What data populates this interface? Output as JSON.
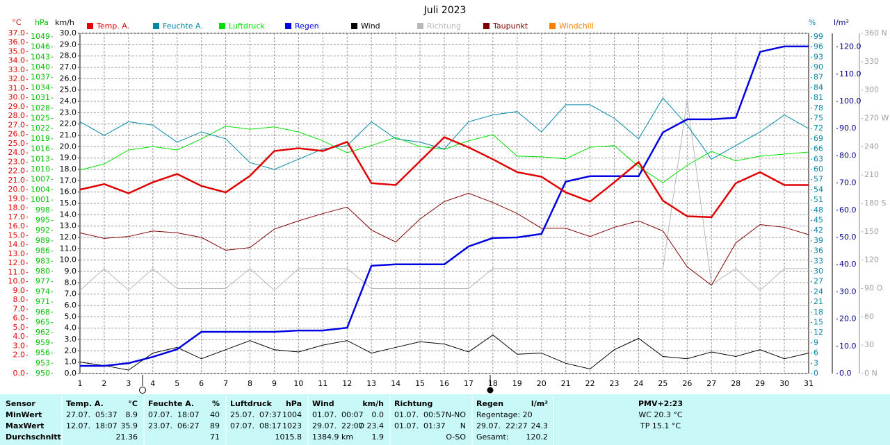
{
  "chart_data": {
    "type": "line",
    "title": "Juli 2023",
    "categories": [
      1,
      2,
      3,
      4,
      5,
      6,
      7,
      8,
      9,
      10,
      11,
      12,
      13,
      14,
      15,
      16,
      17,
      18,
      19,
      20,
      21,
      22,
      23,
      24,
      25,
      26,
      27,
      28,
      29,
      30,
      31
    ],
    "axes": {
      "temp": {
        "label": "°C",
        "color": "#e00000",
        "lim": [
          0,
          37
        ],
        "ticks": [
          {
            "value": 0,
            "label": "0.0"
          },
          {
            "value": 2,
            "label": "2.0"
          },
          {
            "value": 3,
            "label": "3.0"
          },
          {
            "value": 4,
            "label": "4.0"
          },
          {
            "value": 5,
            "label": "5.0"
          },
          {
            "value": 6,
            "label": "6.0"
          },
          {
            "value": 7,
            "label": "7.0"
          },
          {
            "value": 8,
            "label": "8.0"
          },
          {
            "value": 9,
            "label": "9.0"
          },
          {
            "value": 10,
            "label": "10.0"
          },
          {
            "value": 11,
            "label": "11.0"
          },
          {
            "value": 12,
            "label": "12.0"
          },
          {
            "value": 13,
            "label": "13.0"
          },
          {
            "value": 14,
            "label": "14.0"
          },
          {
            "value": 15,
            "label": "15.0"
          },
          {
            "value": 16,
            "label": "16.0"
          },
          {
            "value": 17,
            "label": "17.0"
          },
          {
            "value": 18,
            "label": "18.0"
          },
          {
            "value": 19,
            "label": "19.0"
          },
          {
            "value": 20,
            "label": "20.0"
          },
          {
            "value": 21,
            "label": "21.0"
          },
          {
            "value": 22,
            "label": "22.0"
          },
          {
            "value": 23,
            "label": "23.0"
          },
          {
            "value": 24,
            "label": "24.0"
          },
          {
            "value": 25,
            "label": "25.0"
          },
          {
            "value": 26,
            "label": "26.0"
          },
          {
            "value": 27,
            "label": "27.0"
          },
          {
            "value": 28,
            "label": "28.0"
          },
          {
            "value": 29,
            "label": "29.0"
          },
          {
            "value": 30,
            "label": "30.0"
          },
          {
            "value": 31,
            "label": "31.0"
          },
          {
            "value": 32,
            "label": "32.0"
          },
          {
            "value": 33,
            "label": "33.0"
          },
          {
            "value": 34,
            "label": "34.0"
          },
          {
            "value": 35,
            "label": "35.0"
          },
          {
            "value": 36,
            "label": "36.0"
          },
          {
            "value": 37,
            "label": "37.0"
          }
        ]
      },
      "hpa": {
        "label": "hPa",
        "color": "#00c000",
        "lim": [
          950,
          1050
        ],
        "ticks": [
          950,
          953,
          956,
          959,
          962,
          965,
          968,
          971,
          974,
          977,
          980,
          983,
          986,
          989,
          992,
          995,
          998,
          1001,
          1004,
          1007,
          1010,
          1013,
          1016,
          1019,
          1022,
          1025,
          1028,
          1031,
          1034,
          1037,
          1040,
          1043,
          1046,
          1049
        ]
      },
      "kmh": {
        "label": "km/h",
        "color": "#000000",
        "lim": [
          0,
          30
        ],
        "ticks": [
          {
            "value": 0,
            "label": "0.0"
          },
          {
            "value": 1,
            "label": "1.0"
          },
          {
            "value": 2,
            "label": "2.0"
          },
          {
            "value": 3,
            "label": "3.0"
          },
          {
            "value": 4,
            "label": "4.0"
          },
          {
            "value": 5,
            "label": "5.0"
          },
          {
            "value": 6,
            "label": "6.0"
          },
          {
            "value": 7,
            "label": "7.0"
          },
          {
            "value": 8,
            "label": "8.0"
          },
          {
            "value": 9,
            "label": "9.0"
          },
          {
            "value": 10,
            "label": "10.0"
          },
          {
            "value": 11,
            "label": "11.0"
          },
          {
            "value": 12,
            "label": "12.0"
          },
          {
            "value": 13,
            "label": "13.0"
          },
          {
            "value": 14,
            "label": "14.0"
          },
          {
            "value": 15,
            "label": "15.0"
          },
          {
            "value": 16,
            "label": "16.0"
          },
          {
            "value": 17,
            "label": "17.0"
          },
          {
            "value": 18,
            "label": "18.0"
          },
          {
            "value": 19,
            "label": "19.0"
          },
          {
            "value": 20,
            "label": "20.0"
          },
          {
            "value": 21,
            "label": "21.0"
          },
          {
            "value": 22,
            "label": "22.0"
          },
          {
            "value": 23,
            "label": "23.0"
          },
          {
            "value": 24,
            "label": "24.0"
          },
          {
            "value": 25,
            "label": "25.0"
          },
          {
            "value": 26,
            "label": "26.0"
          },
          {
            "value": 27,
            "label": "27.0"
          },
          {
            "value": 28,
            "label": "28.0"
          },
          {
            "value": 29,
            "label": "29.0"
          },
          {
            "value": 30,
            "label": "30.0"
          }
        ]
      },
      "pct": {
        "label": "%",
        "color": "#0088aa",
        "lim": [
          0,
          100
        ],
        "ticks": [
          0,
          3,
          6,
          9,
          12,
          15,
          18,
          21,
          24,
          27,
          30,
          33,
          36,
          39,
          42,
          45,
          48,
          51,
          54,
          57,
          60,
          63,
          66,
          69,
          72,
          75,
          78,
          81,
          84,
          87,
          90,
          93,
          96,
          99
        ]
      },
      "rain": {
        "label": "l/m²",
        "color": "#000088",
        "lim": [
          0,
          125
        ],
        "ticks": [
          {
            "value": 0,
            "label": "0.0"
          },
          {
            "value": 10,
            "label": "10.0"
          },
          {
            "value": 20,
            "label": "20.0"
          },
          {
            "value": 30,
            "label": "30.0"
          },
          {
            "value": 40,
            "label": "40.0"
          },
          {
            "value": 50,
            "label": "50.0"
          },
          {
            "value": 60,
            "label": "60.0"
          },
          {
            "value": 70,
            "label": "70.0"
          },
          {
            "value": 80,
            "label": "80.0"
          },
          {
            "value": 90,
            "label": "90.0"
          },
          {
            "value": 100,
            "label": "100.0"
          },
          {
            "value": 110,
            "label": "110.0"
          },
          {
            "value": 120,
            "label": "120.0"
          }
        ]
      },
      "dir": {
        "color": "#a0a0a0",
        "lim": [
          0,
          360
        ],
        "ticks": [
          {
            "value": 0,
            "label": "0 N"
          },
          30,
          60,
          {
            "value": 90,
            "label": "90 O"
          },
          120,
          150,
          {
            "value": 180,
            "label": "180 S"
          },
          210,
          240,
          {
            "value": 270,
            "label": "270 W"
          },
          300,
          330,
          {
            "value": 360,
            "label": "360 N"
          }
        ]
      }
    },
    "series": [
      {
        "name": "Temp. A.",
        "color": "#e00000",
        "axis": "temp",
        "width": 2.5,
        "values": [
          20.0,
          20.6,
          19.6,
          20.8,
          21.7,
          20.4,
          19.7,
          21.5,
          24.2,
          24.5,
          24.2,
          25.2,
          20.7,
          20.5,
          23.1,
          25.7,
          24.6,
          23.3,
          21.9,
          21.4,
          19.7,
          18.7,
          20.8,
          23.0,
          18.8,
          17.1,
          17.0,
          20.7,
          21.9,
          20.5,
          20.5
        ]
      },
      {
        "name": "Feuchte A.",
        "color": "#0088aa",
        "axis": "pct",
        "width": 1,
        "values": [
          74,
          70,
          74,
          73,
          68,
          71,
          69,
          62,
          60,
          63,
          66,
          67,
          74,
          69,
          68,
          66,
          74,
          76,
          77,
          71,
          79,
          79,
          75,
          69,
          81,
          73,
          63,
          67,
          71,
          76,
          72
        ]
      },
      {
        "name": "Luftdruck",
        "color": "#00e000",
        "axis": "hpa",
        "width": 1,
        "values": [
          1009.8,
          1011.6,
          1015.7,
          1016.7,
          1015.7,
          1019.0,
          1022.7,
          1021.8,
          1022.5,
          1021.0,
          1018.4,
          1014.9,
          1017.0,
          1019.4,
          1016.7,
          1015.9,
          1018.4,
          1020.2,
          1013.9,
          1013.7,
          1013.1,
          1016.5,
          1017.0,
          1010.8,
          1006.1,
          1011.2,
          1015.3,
          1012.5,
          1013.9,
          1014.5,
          1015.1
        ]
      },
      {
        "name": "Regen",
        "color": "#0000e0",
        "axis": "rain",
        "width": 2.5,
        "values": [
          2.8,
          2.8,
          3.8,
          6.1,
          8.9,
          15.3,
          15.3,
          15.3,
          15.3,
          15.8,
          15.8,
          16.8,
          39.6,
          40.1,
          40.1,
          40.1,
          46.7,
          49.8,
          50.0,
          51.3,
          70.5,
          72.5,
          72.5,
          72.5,
          88.6,
          93.4,
          93.4,
          94.0,
          118.2,
          120.2,
          120.2
        ]
      },
      {
        "name": "Wind",
        "color": "#000000",
        "axis": "kmh",
        "width": 1,
        "values": [
          1.0,
          0.7,
          0.3,
          1.8,
          2.3,
          1.3,
          2.1,
          2.9,
          2.1,
          1.9,
          2.5,
          2.9,
          1.8,
          2.3,
          2.8,
          2.6,
          1.9,
          3.4,
          1.7,
          1.8,
          0.9,
          0.4,
          2.1,
          3.1,
          1.5,
          1.3,
          1.9,
          1.5,
          2.1,
          1.3,
          1.8
        ]
      },
      {
        "name": "Richtung",
        "color": "#b8b8b8",
        "axis": "dir",
        "width": 1,
        "values": [
          88,
          111,
          88,
          111,
          90,
          90,
          90,
          111,
          88,
          111,
          111,
          111,
          90,
          90,
          90,
          90,
          90,
          111,
          111,
          111,
          111,
          111,
          111,
          111,
          111,
          290,
          94,
          111,
          88,
          111,
          111
        ]
      },
      {
        "name": "Taupunkt",
        "color": "#800000",
        "axis": "temp",
        "width": 1,
        "values": [
          15.3,
          14.7,
          14.9,
          15.5,
          15.3,
          14.8,
          13.4,
          13.7,
          15.7,
          16.6,
          17.4,
          18.1,
          15.6,
          14.3,
          16.8,
          18.7,
          19.6,
          18.6,
          17.4,
          15.8,
          15.8,
          14.9,
          15.9,
          16.6,
          15.5,
          11.6,
          9.6,
          14.2,
          16.2,
          15.9,
          15.1
        ]
      },
      {
        "name": "Windchill",
        "color": "#ff8000"
      }
    ]
  },
  "table": {
    "header": "Sensor",
    "row_labels": [
      "MinWert",
      "MaxWert",
      "Durchschnitt"
    ],
    "groups": [
      {
        "name": "Temp. A.",
        "unit": "°C",
        "rows": [
          {
            "left": "27.07.  05:37",
            "right": "8.9"
          },
          {
            "left": "12.07.  18:07",
            "right": "35.9"
          },
          {
            "right": "21.36"
          }
        ]
      },
      {
        "name": "Feuchte A.",
        "unit": "%",
        "rows": [
          {
            "left": "07.07.  18:07",
            "right": "40"
          },
          {
            "left": "23.07.  06:27",
            "right": "89"
          },
          {
            "right": "71"
          }
        ]
      },
      {
        "name": "Luftdruck",
        "unit": "hPa",
        "rows": [
          {
            "left": "25.07.  07:37",
            "right": "1004"
          },
          {
            "left": "07.07.  08:17",
            "right": "1023"
          },
          {
            "right": "1015.8"
          }
        ]
      },
      {
        "name": "Wind",
        "unit": "km/h",
        "rows": [
          {
            "left": "01.07.  00:07",
            "right": "0.0"
          },
          {
            "left": "29.07.  22:07",
            "right": "O 23.4"
          },
          {
            "left": "1384.9 km",
            "right": "1.9"
          }
        ]
      },
      {
        "name": "Richtung",
        "rows": [
          {
            "left": "01.07.  00:57",
            "right": "N-NO"
          },
          {
            "left": "01.07.  01:37",
            "right": "N"
          },
          {
            "right": "O-SO"
          }
        ]
      },
      {
        "name": "Regen",
        "unit": "l/m²",
        "rows": [
          {
            "left": "Regentage: 20"
          },
          {
            "left": "29.07.  22:27",
            "right": "24.3"
          },
          {
            "left": "Gesamt:",
            "right": "120.2"
          }
        ]
      }
    ],
    "pmv": [
      "PMV+2:23",
      "WC 20.3 °C",
      "TP 15.1 °C"
    ]
  }
}
